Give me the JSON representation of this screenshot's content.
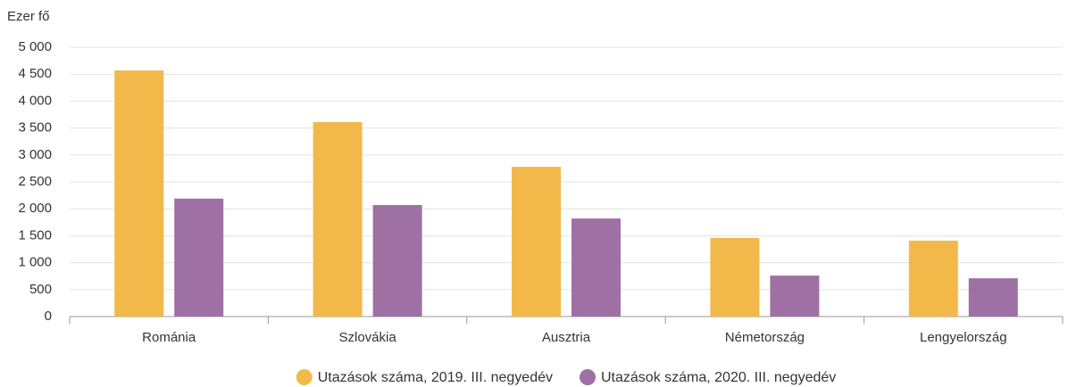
{
  "chart_data": {
    "type": "bar",
    "y_label": "Ezer fő",
    "categories": [
      "Románia",
      "Szlovákia",
      "Ausztria",
      "Németország",
      "Lengyelország"
    ],
    "series": [
      {
        "name": "Utazások száma, 2019. III. negyedév",
        "color": "#f2b94a",
        "values": [
          4570,
          3610,
          2780,
          1460,
          1410
        ]
      },
      {
        "name": "Utazások száma, 2020. III. negyedév",
        "color": "#9e70a3",
        "values": [
          2190,
          2070,
          1820,
          760,
          710
        ]
      }
    ],
    "ylim": [
      0,
      5000
    ],
    "yticks": [
      0,
      500,
      {
        "value": 1000,
        "label": "1 000"
      },
      {
        "value": 1500,
        "label": "1 500"
      },
      {
        "value": 2000,
        "label": "2 000"
      },
      {
        "value": 2500,
        "label": "2 500"
      },
      {
        "value": 3000,
        "label": "3 000"
      },
      {
        "value": 3500,
        "label": "3 500"
      },
      {
        "value": 4000,
        "label": "4 000"
      },
      {
        "value": 4500,
        "label": "4 500"
      },
      {
        "value": 5000,
        "label": "5 000"
      }
    ],
    "grid": true,
    "legend": "bottom"
  }
}
